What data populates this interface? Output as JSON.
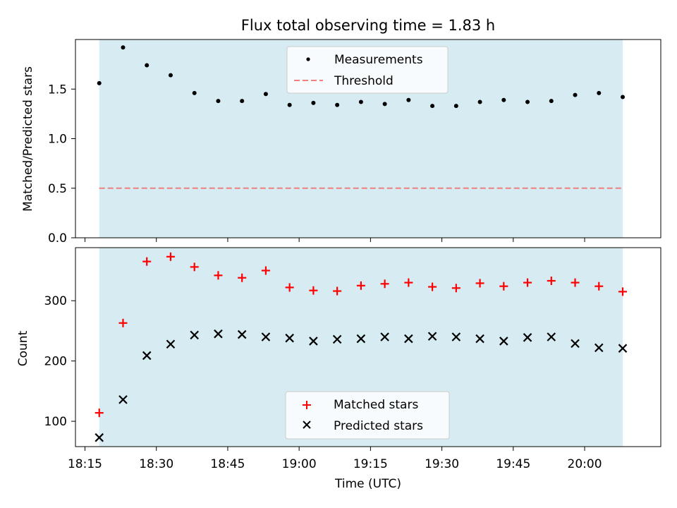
{
  "title": "Flux total observing time = 1.83 h",
  "colors": {
    "band": "#add8e6",
    "measurements": "#000000",
    "threshold": "#f08080",
    "matched": "#ff0000",
    "predicted": "#000000"
  },
  "chart_data": [
    {
      "type": "scatter",
      "ylabel": "Matched/Predicted stars",
      "ylim": [
        0,
        2.0
      ],
      "yticks": [
        0.0,
        0.5,
        1.0,
        1.5
      ],
      "ytick_labels": [
        "0.0",
        "0.5",
        "1.0",
        "1.5"
      ],
      "legend_placement": "top-center",
      "grid": false,
      "shaded_interval": [
        "18:18",
        "20:08"
      ],
      "threshold": {
        "name": "Threshold",
        "value": 0.5,
        "style": "dashed"
      },
      "series": [
        {
          "name": "Measurements",
          "x": [
            "18:18",
            "18:23",
            "18:28",
            "18:33",
            "18:38",
            "18:43",
            "18:48",
            "18:53",
            "18:58",
            "19:03",
            "19:08",
            "19:13",
            "19:18",
            "19:23",
            "19:28",
            "19:33",
            "19:38",
            "19:43",
            "19:48",
            "19:53",
            "19:58",
            "20:03",
            "20:08"
          ],
          "y": [
            1.56,
            1.92,
            1.74,
            1.64,
            1.46,
            1.38,
            1.38,
            1.45,
            1.34,
            1.36,
            1.34,
            1.37,
            1.35,
            1.39,
            1.33,
            1.33,
            1.37,
            1.39,
            1.37,
            1.38,
            1.44,
            1.46,
            1.42
          ]
        }
      ]
    },
    {
      "type": "scatter",
      "xlabel": "Time (UTC)",
      "ylabel": "Count",
      "ylim": [
        58,
        388
      ],
      "xlim": [
        "18:13",
        "20:16"
      ],
      "yticks": [
        100,
        200,
        300
      ],
      "ytick_labels": [
        "100",
        "200",
        "300"
      ],
      "xticks": [
        "18:15",
        "18:30",
        "18:45",
        "19:00",
        "19:15",
        "19:30",
        "19:45",
        "20:00"
      ],
      "xtick_labels": [
        "18:15",
        "18:30",
        "18:45",
        "19:00",
        "19:15",
        "19:30",
        "19:45",
        "20:00"
      ],
      "legend_placement": "bottom-center",
      "grid": false,
      "shaded_interval": [
        "18:18",
        "20:08"
      ],
      "series": [
        {
          "name": "Matched stars",
          "marker": "plus",
          "x": [
            "18:18",
            "18:23",
            "18:28",
            "18:33",
            "18:38",
            "18:43",
            "18:48",
            "18:53",
            "18:58",
            "19:03",
            "19:08",
            "19:13",
            "19:18",
            "19:23",
            "19:28",
            "19:33",
            "19:38",
            "19:43",
            "19:48",
            "19:53",
            "19:58",
            "20:03",
            "20:08"
          ],
          "y": [
            114,
            263,
            365,
            373,
            356,
            342,
            338,
            350,
            322,
            317,
            316,
            325,
            328,
            330,
            323,
            321,
            329,
            324,
            330,
            333,
            330,
            324,
            315
          ]
        },
        {
          "name": "Predicted stars",
          "marker": "x",
          "x": [
            "18:18",
            "18:23",
            "18:28",
            "18:33",
            "18:38",
            "18:43",
            "18:48",
            "18:53",
            "18:58",
            "19:03",
            "19:08",
            "19:13",
            "19:18",
            "19:23",
            "19:28",
            "19:33",
            "19:38",
            "19:43",
            "19:48",
            "19:53",
            "19:58",
            "20:03",
            "20:08"
          ],
          "y": [
            73,
            136,
            209,
            228,
            243,
            245,
            244,
            240,
            238,
            233,
            236,
            237,
            240,
            237,
            241,
            240,
            237,
            233,
            239,
            240,
            229,
            222,
            221
          ]
        }
      ]
    }
  ]
}
